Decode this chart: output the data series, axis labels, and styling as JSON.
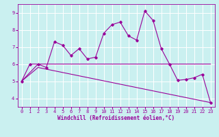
{
  "title": "",
  "xlabel": "Windchill (Refroidissement éolien,°C)",
  "ylabel": "",
  "background_color": "#caf0f0",
  "grid_color": "#ffffff",
  "line_color": "#990099",
  "xlim": [
    -0.5,
    23.5
  ],
  "ylim": [
    3.5,
    9.5
  ],
  "yticks": [
    4,
    5,
    6,
    7,
    8,
    9
  ],
  "xticks": [
    0,
    1,
    2,
    3,
    4,
    5,
    6,
    7,
    8,
    9,
    10,
    11,
    12,
    13,
    14,
    15,
    16,
    17,
    18,
    19,
    20,
    21,
    22,
    23
  ],
  "series1_x": [
    0,
    1,
    2,
    3,
    4,
    5,
    6,
    7,
    8,
    9,
    10,
    11,
    12,
    13,
    14,
    15,
    16,
    17,
    18,
    19,
    20,
    21,
    22,
    23
  ],
  "series1_y": [
    5.0,
    6.0,
    6.0,
    5.8,
    7.3,
    7.1,
    6.5,
    6.9,
    6.3,
    6.4,
    7.8,
    8.3,
    8.45,
    7.65,
    7.4,
    9.1,
    8.55,
    6.9,
    6.0,
    5.05,
    5.1,
    5.2,
    5.4,
    3.75
  ],
  "series2_x": [
    0,
    2,
    23
  ],
  "series2_y": [
    5.0,
    6.0,
    6.0
  ],
  "series3_x": [
    0,
    2,
    23
  ],
  "series3_y": [
    5.0,
    5.8,
    3.75
  ],
  "font_size": 5.5,
  "tick_font_size": 5.0,
  "xlabel_font_size": 5.5,
  "marker": "D",
  "marker_size": 1.8,
  "linewidth": 0.8
}
